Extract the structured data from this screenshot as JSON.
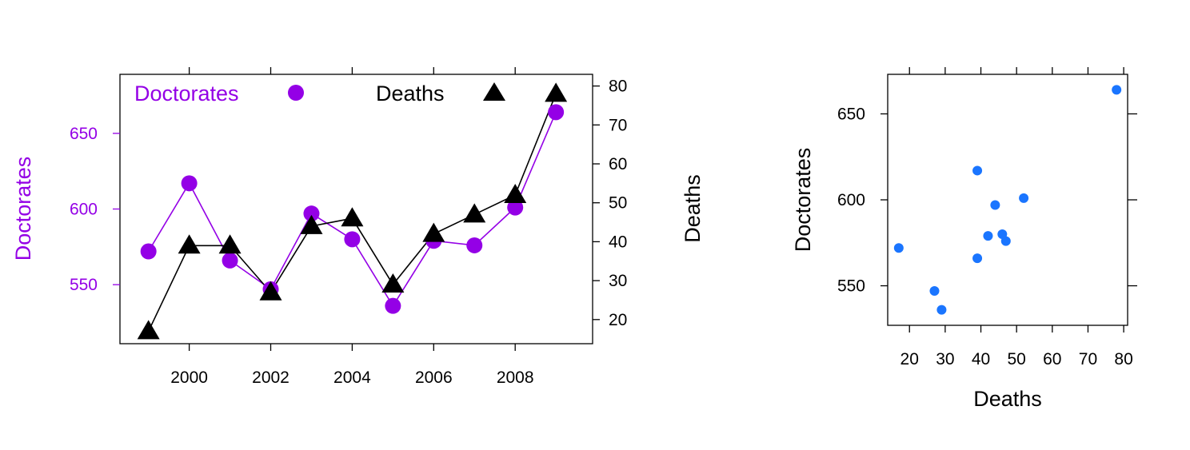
{
  "colors": {
    "doctorates": "#9400e6",
    "deaths": "#000000",
    "scatter_points": "#1a75ff"
  },
  "chart_data": [
    {
      "type": "line",
      "x": [
        1999,
        2000,
        2001,
        2002,
        2003,
        2004,
        2005,
        2006,
        2007,
        2008,
        2009
      ],
      "x_ticks": [
        "2000",
        "2002",
        "2004",
        "2006",
        "2008"
      ],
      "xlim": [
        1998.3,
        2009.9
      ],
      "series": [
        {
          "name": "Doctorates",
          "axis": "left",
          "marker": "circle",
          "values": [
            572,
            617,
            566,
            547,
            597,
            580,
            536,
            579,
            576,
            601,
            664
          ]
        },
        {
          "name": "Deaths",
          "axis": "right",
          "marker": "triangle",
          "values": [
            17,
            39,
            39,
            27,
            44,
            46,
            29,
            42,
            47,
            52,
            78
          ]
        }
      ],
      "ylabel_left": "Doctorates",
      "ylim_left": [
        511,
        689
      ],
      "y_ticks_left": [
        "550",
        "600",
        "650"
      ],
      "ylabel_right": "Deaths",
      "ylim_right": [
        13.8,
        83
      ],
      "y_ticks_right": [
        "20",
        "30",
        "40",
        "50",
        "60",
        "70",
        "80"
      ],
      "legend_placement": "top"
    },
    {
      "type": "scatter",
      "xlabel": "Deaths",
      "ylabel": "Doctorates",
      "xlim": [
        13.9,
        81.1
      ],
      "ylim": [
        527,
        673
      ],
      "x_ticks": [
        "20",
        "30",
        "40",
        "50",
        "60",
        "70",
        "80"
      ],
      "y_ticks": [
        "550",
        "600",
        "650"
      ],
      "points": [
        {
          "x": 17,
          "y": 572
        },
        {
          "x": 39,
          "y": 617
        },
        {
          "x": 39,
          "y": 566
        },
        {
          "x": 27,
          "y": 547
        },
        {
          "x": 44,
          "y": 597
        },
        {
          "x": 46,
          "y": 580
        },
        {
          "x": 29,
          "y": 536
        },
        {
          "x": 42,
          "y": 579
        },
        {
          "x": 47,
          "y": 576
        },
        {
          "x": 52,
          "y": 601
        },
        {
          "x": 78,
          "y": 664
        }
      ]
    }
  ]
}
